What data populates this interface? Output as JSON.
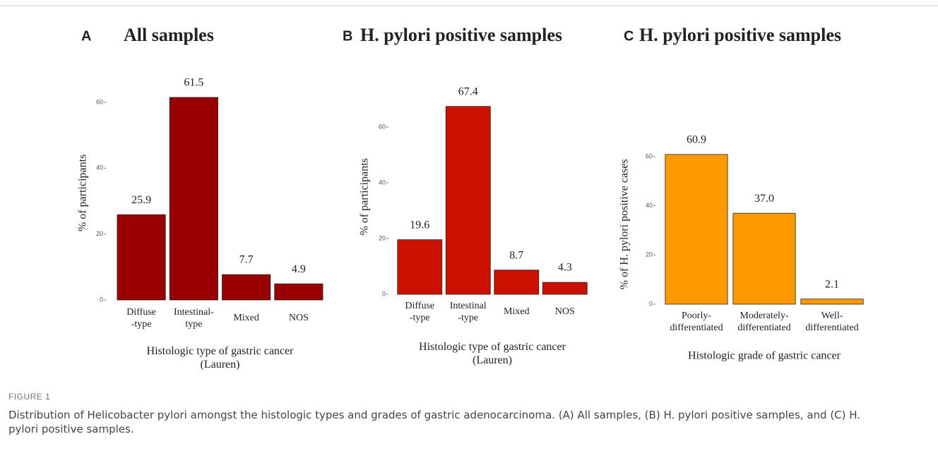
{
  "chart_data": [
    {
      "type": "bar",
      "panel": "A",
      "title": "All samples",
      "y_label": "% of participants",
      "x_label": "Histologic type of gastric cancer\n(Lauren)",
      "categories": [
        "Diffuse\n-type",
        "Intestinal-\ntype",
        "Mixed",
        "NOS"
      ],
      "values": [
        25.9,
        61.5,
        7.7,
        4.9
      ],
      "color": "#990000",
      "ylim": [
        0,
        65
      ],
      "yticks": [
        0,
        20,
        40,
        60
      ]
    },
    {
      "type": "bar",
      "panel": "B",
      "title": "H. pylori positive samples",
      "y_label": "% of participants",
      "x_label": "Histologic type of gastric cancer\n(Lauren)",
      "categories": [
        "Diffuse\n-type",
        "Intestinal\n-type",
        "Mixed",
        "NOS"
      ],
      "values": [
        19.6,
        67.4,
        8.7,
        4.3
      ],
      "color": "#cc1100",
      "ylim": [
        0,
        70
      ],
      "yticks": [
        0,
        20,
        40,
        60
      ]
    },
    {
      "type": "bar",
      "panel": "C",
      "title": "H. pylori positive samples",
      "y_label": "% of H. pylori positive cases",
      "x_label": "Histologic grade of gastric cancer",
      "categories": [
        "Poorly-\ndifferentiated",
        "Moderately-\ndifferentiated",
        "Well-\ndifferentiated"
      ],
      "values": [
        60.9,
        37,
        2.1
      ],
      "value_labels": [
        "60.9",
        "37.0",
        "2.1"
      ],
      "color": "#ff9900",
      "ylim": [
        0,
        65
      ],
      "yticks": [
        0,
        20,
        40,
        60
      ]
    }
  ],
  "figure_label": "FIGURE 1",
  "caption": "Distribution of Helicobacter pylori amongst the histologic types and grades of gastric adenocarcinoma. (A) All samples, (B) H. pylori positive samples, and (C) H. pylori positive samples."
}
